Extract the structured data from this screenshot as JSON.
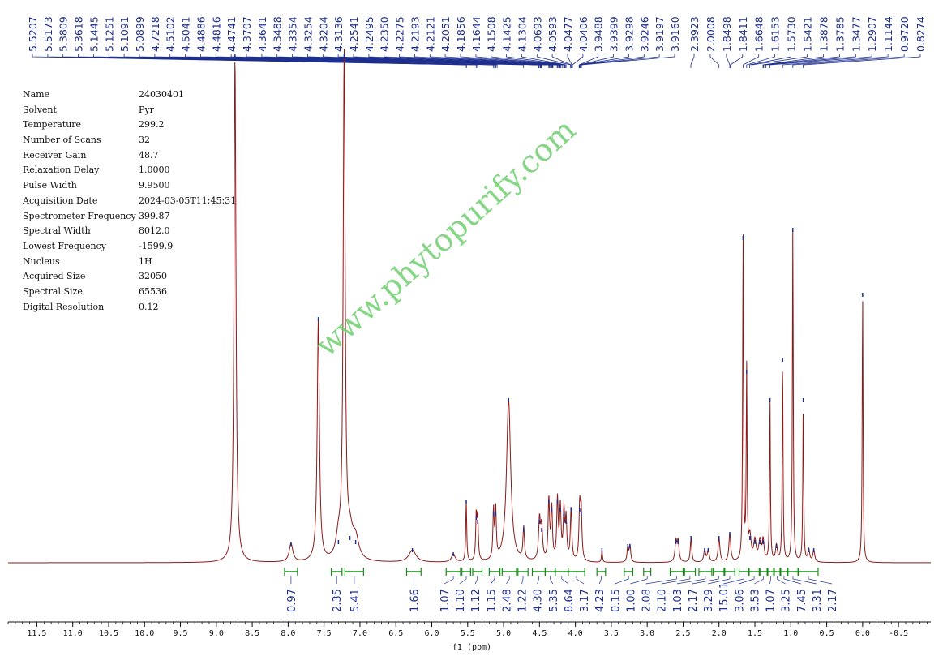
{
  "meta": {
    "rows": [
      {
        "key": "Name",
        "value": "24030401"
      },
      {
        "key": "Solvent",
        "value": "Pyr"
      },
      {
        "key": "Temperature",
        "value": "299.2"
      },
      {
        "key": "Number of Scans",
        "value": "32"
      },
      {
        "key": "Receiver Gain",
        "value": "48.7"
      },
      {
        "key": "Relaxation Delay",
        "value": "1.0000"
      },
      {
        "key": "Pulse Width",
        "value": "9.9500"
      },
      {
        "key": "Acquisition Date",
        "value": "2024-03-05T11:45:31"
      },
      {
        "key": "Spectrometer Frequency",
        "value": "399.87"
      },
      {
        "key": "Spectral Width",
        "value": "8012.0"
      },
      {
        "key": "Lowest Frequency",
        "value": "-1599.9"
      },
      {
        "key": "Nucleus",
        "value": "1H"
      },
      {
        "key": "Acquired Size",
        "value": "32050"
      },
      {
        "key": "Spectral Size",
        "value": "65536"
      },
      {
        "key": "Digital Resolution",
        "value": "0.12"
      }
    ]
  },
  "watermark": "www.phytopurify.com",
  "colors": {
    "spectrum": "#8b1a1a",
    "peak_labels": "#1f2f8f",
    "integrals": "#1a8a1a",
    "watermark": "#6fcf6f"
  },
  "chart_data": {
    "type": "line",
    "xlabel": "f1 (ppm)",
    "xlim": [
      11.9,
      -0.95
    ],
    "x_reversed": true,
    "x_ticks": [
      11.5,
      11.0,
      10.5,
      10.0,
      9.5,
      9.0,
      8.5,
      8.0,
      7.5,
      7.0,
      6.5,
      6.0,
      5.5,
      5.0,
      4.5,
      4.0,
      3.5,
      3.0,
      2.5,
      2.0,
      1.5,
      1.0,
      0.5,
      0.0,
      -0.5
    ],
    "x_tick_labels": [
      "11.5",
      "11.0",
      "10.5",
      "10.0",
      "9.5",
      "9.0",
      "8.5",
      "8.0",
      "7.5",
      "7.0",
      "6.5",
      "6.0",
      "5.5",
      "5.0",
      "4.5",
      "4.0",
      "3.5",
      "3.0",
      "2.5",
      "2.0",
      "1.5",
      "1.0",
      "0.5",
      "0.0",
      "-0.5"
    ],
    "peak_labels": [
      "5.5207",
      "5.5173",
      "5.3809",
      "5.3618",
      "5.1445",
      "5.1251",
      "5.1091",
      "5.0899",
      "4.7218",
      "4.5102",
      "4.5041",
      "4.4886",
      "4.4816",
      "4.4741",
      "4.3707",
      "4.3641",
      "4.3488",
      "4.3354",
      "4.3254",
      "4.3204",
      "4.3136",
      "4.2541",
      "4.2495",
      "4.2350",
      "4.2275",
      "4.2193",
      "4.2121",
      "4.2051",
      "4.1856",
      "4.1644",
      "4.1508",
      "4.1425",
      "4.1304",
      "4.0693",
      "4.0593",
      "4.0477",
      "4.0406",
      "3.9488",
      "3.9399",
      "3.9298",
      "3.9246",
      "3.9197",
      "3.9160",
      "2.3923",
      "2.0008",
      "1.8498",
      "1.8411",
      "1.6648",
      "1.6153",
      "1.5730",
      "1.5421",
      "1.3878",
      "1.3785",
      "1.3477",
      "1.2907",
      "1.1144",
      "0.9720",
      "0.8274"
    ],
    "peaks": [
      {
        "ppm": 8.74,
        "height": 1.25,
        "width": 0.016
      },
      {
        "ppm": 7.58,
        "height": 0.6,
        "width": 0.018
      },
      {
        "ppm": 7.22,
        "height": 1.25,
        "width": 0.016
      },
      {
        "ppm": 7.96,
        "height": 0.045,
        "width": 0.03
      },
      {
        "ppm": 7.3,
        "height": 0.05,
        "width": 0.04
      },
      {
        "ppm": 7.14,
        "height": 0.06,
        "width": 0.05
      },
      {
        "ppm": 7.06,
        "height": 0.05,
        "width": 0.05
      },
      {
        "ppm": 6.27,
        "height": 0.03,
        "width": 0.06
      },
      {
        "ppm": 5.7,
        "height": 0.02,
        "width": 0.03
      },
      {
        "ppm": 5.52,
        "height": 0.15,
        "width": 0.008
      },
      {
        "ppm": 5.38,
        "height": 0.11,
        "width": 0.01
      },
      {
        "ppm": 5.36,
        "height": 0.1,
        "width": 0.01
      },
      {
        "ppm": 5.14,
        "height": 0.12,
        "width": 0.01
      },
      {
        "ppm": 5.11,
        "height": 0.12,
        "width": 0.01
      },
      {
        "ppm": 4.93,
        "height": 0.4,
        "width": 0.035
      },
      {
        "ppm": 4.72,
        "height": 0.08,
        "width": 0.012
      },
      {
        "ppm": 4.5,
        "height": 0.1,
        "width": 0.015
      },
      {
        "ppm": 4.47,
        "height": 0.08,
        "width": 0.015
      },
      {
        "ppm": 4.37,
        "height": 0.15,
        "width": 0.012
      },
      {
        "ppm": 4.33,
        "height": 0.13,
        "width": 0.012
      },
      {
        "ppm": 4.25,
        "height": 0.15,
        "width": 0.012
      },
      {
        "ppm": 4.21,
        "height": 0.13,
        "width": 0.012
      },
      {
        "ppm": 4.16,
        "height": 0.12,
        "width": 0.012
      },
      {
        "ppm": 4.13,
        "height": 0.1,
        "width": 0.012
      },
      {
        "ppm": 4.06,
        "height": 0.13,
        "width": 0.012
      },
      {
        "ppm": 3.94,
        "height": 0.13,
        "width": 0.012
      },
      {
        "ppm": 3.92,
        "height": 0.12,
        "width": 0.012
      },
      {
        "ppm": 3.63,
        "height": 0.03,
        "width": 0.008
      },
      {
        "ppm": 3.27,
        "height": 0.04,
        "width": 0.012
      },
      {
        "ppm": 3.24,
        "height": 0.04,
        "width": 0.012
      },
      {
        "ppm": 2.6,
        "height": 0.05,
        "width": 0.015
      },
      {
        "ppm": 2.57,
        "height": 0.05,
        "width": 0.015
      },
      {
        "ppm": 2.39,
        "height": 0.06,
        "width": 0.012
      },
      {
        "ppm": 2.2,
        "height": 0.03,
        "width": 0.015
      },
      {
        "ppm": 2.15,
        "height": 0.03,
        "width": 0.015
      },
      {
        "ppm": 2.0,
        "height": 0.06,
        "width": 0.015
      },
      {
        "ppm": 1.85,
        "height": 0.07,
        "width": 0.015
      },
      {
        "ppm": 1.665,
        "height": 0.8,
        "width": 0.007
      },
      {
        "ppm": 1.615,
        "height": 0.47,
        "width": 0.007
      },
      {
        "ppm": 1.57,
        "height": 0.06,
        "width": 0.02
      },
      {
        "ppm": 1.5,
        "height": 0.05,
        "width": 0.02
      },
      {
        "ppm": 1.43,
        "height": 0.05,
        "width": 0.02
      },
      {
        "ppm": 1.385,
        "height": 0.05,
        "width": 0.015
      },
      {
        "ppm": 1.29,
        "height": 0.4,
        "width": 0.007
      },
      {
        "ppm": 1.2,
        "height": 0.04,
        "width": 0.015
      },
      {
        "ppm": 1.114,
        "height": 0.5,
        "width": 0.007
      },
      {
        "ppm": 0.972,
        "height": 0.82,
        "width": 0.007
      },
      {
        "ppm": 0.827,
        "height": 0.4,
        "width": 0.007
      },
      {
        "ppm": 0.75,
        "height": 0.03,
        "width": 0.015
      },
      {
        "ppm": 0.68,
        "height": 0.03,
        "width": 0.015
      },
      {
        "ppm": 0.0,
        "height": 0.66,
        "width": 0.007
      }
    ],
    "integrals": [
      {
        "from": 8.05,
        "to": 7.87,
        "label": "0.97"
      },
      {
        "from": 7.4,
        "to": 7.25,
        "label": "2.35"
      },
      {
        "from": 7.21,
        "to": 6.95,
        "label": "5.41"
      },
      {
        "from": 6.35,
        "to": 6.15,
        "label": "1.66"
      },
      {
        "from": 5.8,
        "to": 5.6,
        "label": "1.07"
      },
      {
        "from": 5.58,
        "to": 5.46,
        "label": "1.10"
      },
      {
        "from": 5.43,
        "to": 5.3,
        "label": "1.12"
      },
      {
        "from": 5.2,
        "to": 5.05,
        "label": "1.15"
      },
      {
        "from": 5.02,
        "to": 4.82,
        "label": "2.48"
      },
      {
        "from": 4.8,
        "to": 4.66,
        "label": "1.22"
      },
      {
        "from": 4.6,
        "to": 4.42,
        "label": "4.30"
      },
      {
        "from": 4.42,
        "to": 4.28,
        "label": "5.35"
      },
      {
        "from": 4.28,
        "to": 4.1,
        "label": "8.64"
      },
      {
        "from": 4.1,
        "to": 3.87,
        "label": "3.17"
      },
      {
        "from": 3.7,
        "to": 3.58,
        "label": "4.23"
      },
      {
        "from": 3.32,
        "to": 3.2,
        "label": "0.15"
      },
      {
        "from": 3.05,
        "to": 2.95,
        "label": "1.00"
      },
      {
        "from": 2.68,
        "to": 2.5,
        "label": "2.08"
      },
      {
        "from": 2.48,
        "to": 2.33,
        "label": "2.10"
      },
      {
        "from": 2.28,
        "to": 2.1,
        "label": "1.03"
      },
      {
        "from": 2.08,
        "to": 1.93,
        "label": "2.17"
      },
      {
        "from": 1.92,
        "to": 1.78,
        "label": "3.29"
      },
      {
        "from": 1.72,
        "to": 1.59,
        "label": "15.01"
      },
      {
        "from": 1.58,
        "to": 1.44,
        "label": "3.06"
      },
      {
        "from": 1.43,
        "to": 1.33,
        "label": "3.53"
      },
      {
        "from": 1.32,
        "to": 1.24,
        "label": "1.07"
      },
      {
        "from": 1.23,
        "to": 1.15,
        "label": "3.25"
      },
      {
        "from": 1.14,
        "to": 1.05,
        "label": "7.45"
      },
      {
        "from": 1.04,
        "to": 0.9,
        "label": "3.31"
      },
      {
        "from": 0.89,
        "to": 0.62,
        "label": "2.17"
      }
    ]
  }
}
